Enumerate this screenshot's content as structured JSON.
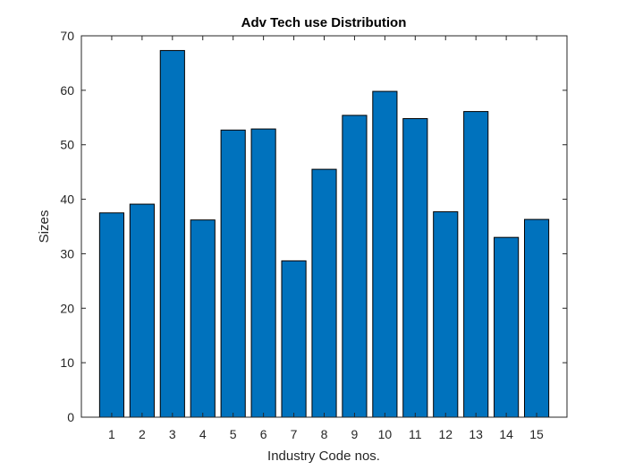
{
  "chart_data": {
    "type": "bar",
    "title": "Adv Tech use Distribution",
    "xlabel": "Industry Code nos.",
    "ylabel": "Sizes",
    "categories": [
      "1",
      "2",
      "3",
      "4",
      "5",
      "6",
      "7",
      "8",
      "9",
      "10",
      "11",
      "12",
      "13",
      "14",
      "15"
    ],
    "values": [
      37.5,
      39.1,
      67.3,
      36.2,
      52.7,
      52.9,
      28.7,
      45.5,
      55.4,
      59.8,
      54.8,
      37.7,
      56.1,
      33.0,
      36.3
    ],
    "ylim": [
      0,
      70
    ],
    "yticks": [
      0,
      10,
      20,
      30,
      40,
      50,
      60,
      70
    ],
    "grid": false,
    "bar_color": "#0072BD",
    "bar_edge_color": "#000000",
    "axis_color": "#262626"
  }
}
